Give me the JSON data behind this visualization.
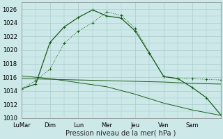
{
  "xlabel": "Pression niveau de la mer( hPa )",
  "xlim": [
    0,
    7
  ],
  "ylim": [
    1010,
    1027
  ],
  "yticks": [
    1010,
    1012,
    1014,
    1016,
    1018,
    1020,
    1022,
    1024,
    1026
  ],
  "xtick_labels": [
    "LuMar",
    "Dim",
    "Lun",
    "Mer",
    "Jeu",
    "Ven",
    "Sam"
  ],
  "xtick_positions": [
    0,
    1,
    2,
    3,
    4,
    5,
    6
  ],
  "bg_color": "#cce8e8",
  "line_color": "#1a5c1a",
  "grid_color": "#aacaca",
  "line1_dotted": {
    "x": [
      0,
      0.5,
      1.0,
      1.5,
      2.0,
      2.5,
      3.0,
      3.5,
      4.0,
      4.5,
      5.0,
      5.5,
      6.0,
      6.5,
      7.0
    ],
    "y": [
      1014.3,
      1015.5,
      1017.2,
      1021.0,
      1022.8,
      1024.0,
      1025.6,
      1025.1,
      1023.2,
      1019.6,
      1016.1,
      1015.8,
      1015.8,
      1015.7,
      1015.6
    ]
  },
  "line2_solid": {
    "x": [
      0,
      0.5,
      1.0,
      1.5,
      2.0,
      2.5,
      3.0,
      3.5,
      4.0,
      4.5,
      5.0,
      5.5,
      6.0,
      6.5,
      7.0
    ],
    "y": [
      1014.3,
      1015.0,
      1021.1,
      1023.4,
      1024.8,
      1025.9,
      1025.0,
      1024.7,
      1022.8,
      1019.5,
      1016.1,
      1015.8,
      1014.5,
      1013.0,
      1010.5
    ]
  },
  "line3_flat": {
    "x": [
      0,
      1,
      2,
      3,
      4,
      5,
      5.5,
      6,
      7
    ],
    "y": [
      1015.8,
      1015.7,
      1015.6,
      1015.5,
      1015.4,
      1015.3,
      1015.2,
      1015.1,
      1015.0
    ]
  },
  "line4_decline": {
    "x": [
      0,
      1,
      2,
      3,
      4,
      5,
      6,
      7
    ],
    "y": [
      1016.2,
      1015.8,
      1015.2,
      1014.6,
      1013.5,
      1012.2,
      1011.2,
      1010.4
    ]
  }
}
